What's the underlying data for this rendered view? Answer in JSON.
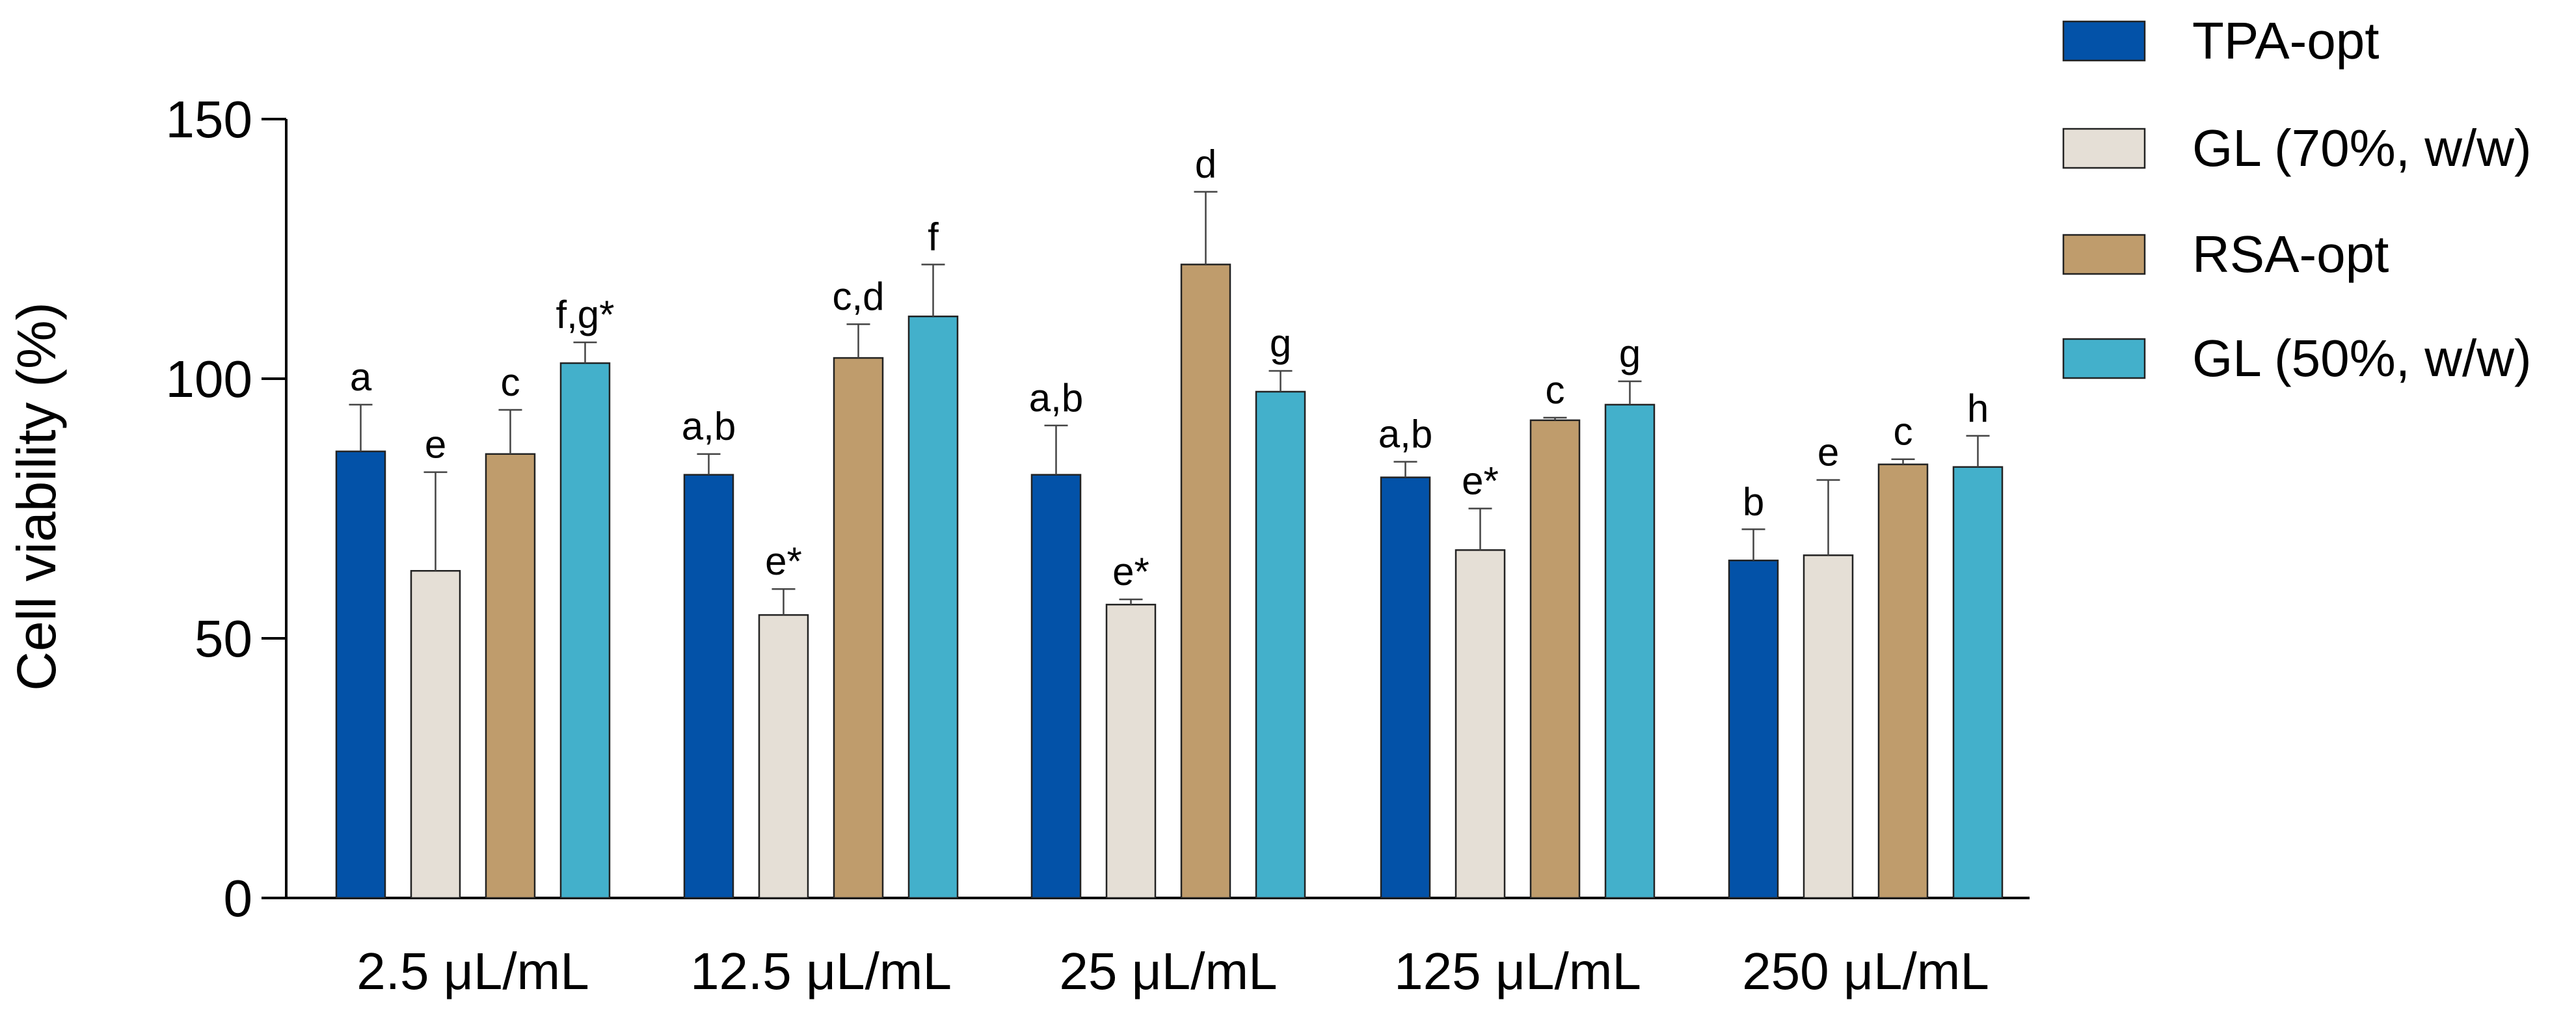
{
  "chart_data": {
    "type": "bar",
    "title": "",
    "xlabel": "",
    "ylabel": "Cell viability (%)",
    "ylim": [
      0,
      150
    ],
    "yticks": [
      "0",
      "50",
      "100",
      "150"
    ],
    "grid": false,
    "legend_position": "top-right",
    "categories": [
      "2.5 μL/mL",
      "12.5 μL/mL",
      "25 μL/mL",
      "125 μL/mL",
      "250 μL/mL"
    ],
    "series": [
      {
        "name": "TPA-opt",
        "color": "#0352A8",
        "values": [
          86,
          81.5,
          81.5,
          81,
          65
        ],
        "errors": [
          9,
          4,
          9.5,
          3,
          6
        ],
        "labels": [
          "a",
          "a,b",
          "a,b",
          "a,b",
          "b"
        ]
      },
      {
        "name": "GL (70%, w/w)",
        "color": "#E5DFD6",
        "values": [
          63,
          54.5,
          56.5,
          67,
          66
        ],
        "errors": [
          19,
          5,
          1,
          8,
          14.5
        ],
        "labels": [
          "e",
          "e*",
          "e*",
          "e*",
          "e"
        ]
      },
      {
        "name": "RSA-opt",
        "color": "#BF9C6C",
        "values": [
          85.5,
          104,
          122,
          92,
          83.5
        ],
        "errors": [
          8.5,
          6.5,
          14,
          0.5,
          1
        ],
        "labels": [
          "c",
          "c,d",
          "d",
          "c",
          "c"
        ]
      },
      {
        "name": "GL (50%, w/w)",
        "color": "#43B0CB",
        "values": [
          103,
          112,
          97.5,
          95,
          83
        ],
        "errors": [
          4,
          10,
          4,
          4.5,
          6
        ],
        "labels": [
          "f,g*",
          "f",
          "g",
          "g",
          "h"
        ]
      }
    ]
  }
}
